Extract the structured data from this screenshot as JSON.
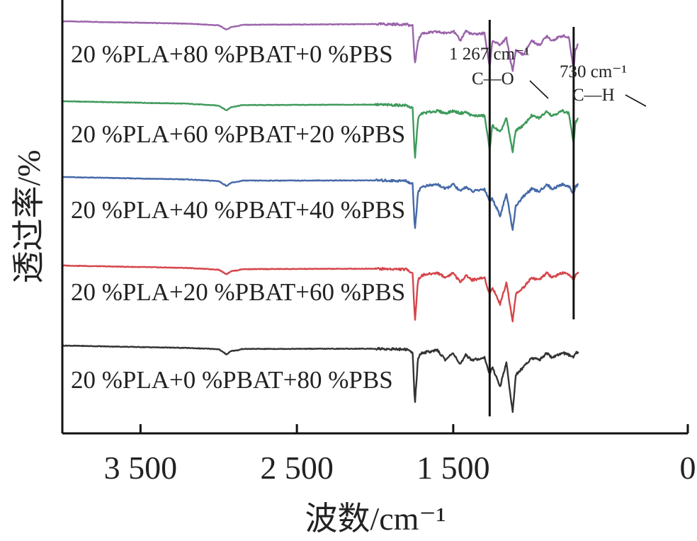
{
  "chart_data": {
    "type": "line",
    "xlabel": "波数/cm⁻¹",
    "ylabel": "透过率/%",
    "xlim": [
      4000,
      0
    ],
    "x_reversed": true,
    "xticks": [
      3500,
      2500,
      1500,
      0
    ],
    "xtick_labels": [
      "3 500",
      "2 500",
      "1 500",
      "0"
    ],
    "yticks": "none",
    "grid": false,
    "legend": "none (series labelled directly above each curve)",
    "stacked_offset": true,
    "series": [
      {
        "name": "20 %PLA+80 %PBAT+0 %PBS",
        "color": "#9b64ab",
        "x": [
          4000,
          3200,
          3000,
          2950,
          2920,
          2880,
          2850,
          2000,
          1800,
          1760,
          1745,
          1725,
          1700,
          1600,
          1550,
          1500,
          1455,
          1420,
          1380,
          1300,
          1267,
          1250,
          1200,
          1160,
          1120,
          1100,
          1050,
          1000,
          950,
          900,
          870,
          800,
          760,
          730,
          720,
          700
        ],
        "values": [
          100,
          99,
          98.3,
          96.5,
          97.6,
          98,
          98.5,
          98.8,
          98.7,
          98,
          82,
          92,
          95,
          95.6,
          95,
          96,
          92,
          96,
          94.5,
          95,
          81,
          92,
          90,
          93,
          79,
          88,
          86,
          92,
          90,
          94,
          92,
          94,
          93,
          80,
          88,
          91
        ]
      },
      {
        "name": "20 %PLA+60 %PBAT+20 %PBS",
        "color": "#3f9a5b",
        "x": [
          4000,
          3200,
          3000,
          2950,
          2920,
          2880,
          2850,
          2000,
          1800,
          1760,
          1745,
          1725,
          1700,
          1600,
          1550,
          1500,
          1455,
          1420,
          1380,
          1300,
          1267,
          1250,
          1200,
          1160,
          1120,
          1100,
          1050,
          1000,
          950,
          900,
          870,
          800,
          760,
          730,
          720,
          700
        ],
        "values": [
          100,
          99,
          98.2,
          96.2,
          97.6,
          98,
          98.4,
          98.6,
          98.3,
          97,
          76,
          93,
          95,
          96,
          95,
          96,
          95,
          95.5,
          94,
          94,
          80,
          90,
          87,
          93,
          79,
          88,
          90,
          94,
          93,
          96,
          94,
          96,
          95,
          82,
          91,
          93
        ]
      },
      {
        "name": "20 %PLA+40 %PBAT+40 %PBS",
        "color": "#4569a8",
        "x": [
          4000,
          3200,
          3000,
          2950,
          2920,
          2880,
          2850,
          2000,
          1800,
          1760,
          1745,
          1725,
          1700,
          1600,
          1550,
          1500,
          1455,
          1420,
          1380,
          1300,
          1267,
          1250,
          1200,
          1160,
          1120,
          1100,
          1050,
          1000,
          950,
          900,
          870,
          800,
          760,
          730,
          720,
          700
        ],
        "values": [
          100,
          99,
          98.3,
          96.3,
          97.6,
          98,
          98.5,
          98.6,
          98.4,
          97,
          78,
          94,
          96,
          97,
          95,
          97,
          94,
          96,
          94,
          95,
          90,
          91,
          84,
          93,
          78,
          88,
          92,
          95,
          94,
          97,
          95,
          97,
          96,
          93,
          96,
          97
        ]
      },
      {
        "name": "20 %PLA+20 %PBAT+60 %PBS",
        "color": "#d5454a",
        "x": [
          4000,
          3200,
          3000,
          2950,
          2920,
          2880,
          2850,
          2000,
          1800,
          1760,
          1745,
          1725,
          1700,
          1600,
          1550,
          1500,
          1455,
          1420,
          1380,
          1300,
          1267,
          1250,
          1200,
          1160,
          1120,
          1100,
          1050,
          1000,
          950,
          900,
          870,
          800,
          760,
          730,
          720,
          700
        ],
        "values": [
          100,
          99,
          98.3,
          96.4,
          97.7,
          98,
          98.5,
          98.7,
          98.4,
          97,
          77,
          94,
          96,
          97,
          95,
          97,
          93,
          96,
          94,
          95,
          88,
          91,
          84,
          93,
          77,
          88,
          91,
          95,
          94,
          97,
          95,
          97,
          96,
          94,
          96,
          97
        ]
      },
      {
        "name": "20 %PLA+0 %PBAT+80 %PBS",
        "color": "#333333",
        "x": [
          4000,
          3200,
          3000,
          2950,
          2920,
          2880,
          2850,
          2000,
          1800,
          1760,
          1745,
          1725,
          1700,
          1600,
          1550,
          1500,
          1455,
          1420,
          1380,
          1300,
          1267,
          1250,
          1200,
          1160,
          1120,
          1100,
          1050,
          1000,
          950,
          900,
          870,
          800,
          760,
          730,
          720,
          700
        ],
        "values": [
          100,
          99,
          98.5,
          96.3,
          97.8,
          98,
          98.6,
          98.7,
          98.4,
          97,
          76,
          95,
          97,
          98,
          94,
          97,
          92,
          96,
          94,
          95,
          88,
          91,
          83,
          93,
          72,
          88,
          91,
          95,
          94,
          97,
          95,
          97,
          96,
          95,
          97,
          97
        ]
      }
    ],
    "annotations": [
      {
        "text_top": "1 267 cm⁻¹",
        "text_bottom": "C—O",
        "x": 1267
      },
      {
        "text_top": "730 cm⁻¹",
        "text_bottom": "C—H",
        "x": 730
      }
    ]
  }
}
